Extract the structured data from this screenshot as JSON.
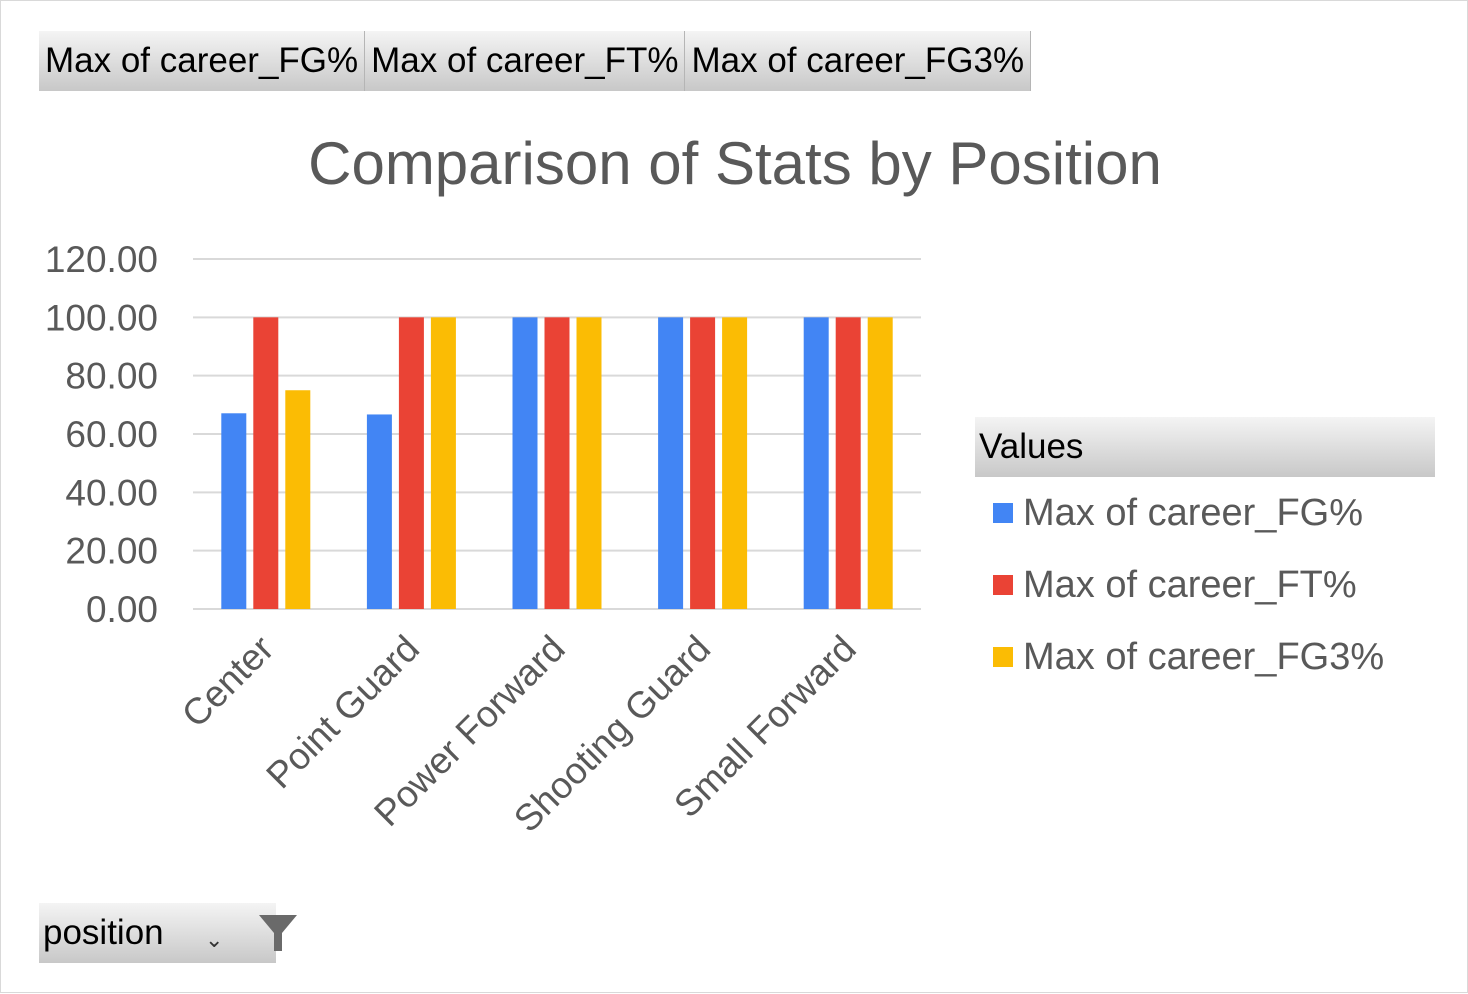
{
  "field_buttons": [
    "Max of career_FG%",
    "Max of career_FT%",
    "Max of career_FG3%"
  ],
  "legend_header": "Values",
  "filter": {
    "label": "position",
    "dropdown_glyph": "⌄",
    "icon": "funnel-icon"
  },
  "colors": {
    "fg": "#4285f4",
    "ft": "#ea4335",
    "fg3": "#fbbc04",
    "grid": "#d9d9d9",
    "text": "#595959"
  },
  "chart_data": {
    "type": "bar",
    "title": "Comparison of Stats by Position",
    "categories": [
      "Center",
      "Point Guard",
      "Power Forward",
      "Shooting Guard",
      "Small Forward"
    ],
    "series": [
      {
        "name": "Max of career_FG%",
        "values": [
          67.1,
          66.7,
          100,
          100,
          100
        ]
      },
      {
        "name": "Max of career_FT%",
        "values": [
          100,
          100,
          100,
          100,
          100
        ]
      },
      {
        "name": "Max of career_FG3%",
        "values": [
          75,
          100,
          100,
          100,
          100
        ]
      }
    ],
    "yticks": [
      "0.00",
      "20.00",
      "40.00",
      "60.00",
      "80.00",
      "100.00",
      "120.00"
    ],
    "ylim": [
      0,
      120
    ],
    "grid": true,
    "legend_position": "right"
  }
}
